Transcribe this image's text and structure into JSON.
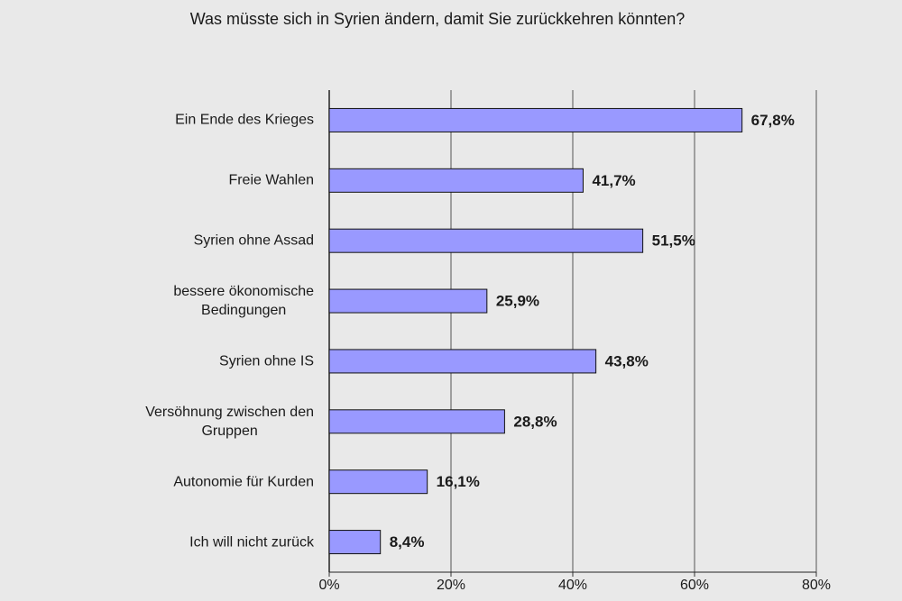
{
  "chart_data": {
    "type": "bar",
    "orientation": "horizontal",
    "title": "Was müsste sich in Syrien ändern, damit Sie zurückkehren könnten?",
    "categories": [
      "Ein Ende des Krieges",
      "Freie Wahlen",
      "Syrien ohne Assad",
      "bessere ökonomische\nBedingungen",
      "Syrien ohne IS",
      "Versöhnung zwischen den\nGruppen",
      "Autonomie für Kurden",
      "Ich will nicht zurück"
    ],
    "values": [
      67.8,
      41.7,
      51.5,
      25.9,
      43.8,
      28.8,
      16.1,
      8.4
    ],
    "value_labels": [
      "67,8%",
      "41,7%",
      "51,5%",
      "25,9%",
      "43,8%",
      "28,8%",
      "16,1%",
      "8,4%"
    ],
    "color": "#9999ff",
    "xlim": [
      0,
      80
    ],
    "xticks": [
      {
        "value": 0,
        "label": "0%"
      },
      {
        "value": 20,
        "label": "20%"
      },
      {
        "value": 40,
        "label": "40%"
      },
      {
        "value": 60,
        "label": "60%"
      },
      {
        "value": 80,
        "label": "80%"
      }
    ],
    "grid": true
  }
}
